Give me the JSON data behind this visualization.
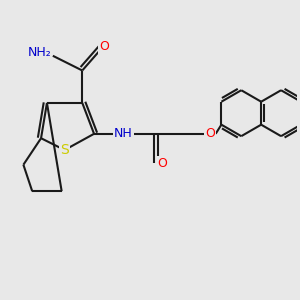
{
  "bg_color": "#e8e8e8",
  "bond_color": "#1a1a1a",
  "bond_width": 1.5,
  "atom_colors": {
    "S": "#cccc00",
    "N": "#0000cc",
    "O": "#ff0000",
    "C": "#1a1a1a"
  },
  "font_size": 9,
  "fig_size": [
    3.0,
    3.0
  ],
  "dpi": 100
}
